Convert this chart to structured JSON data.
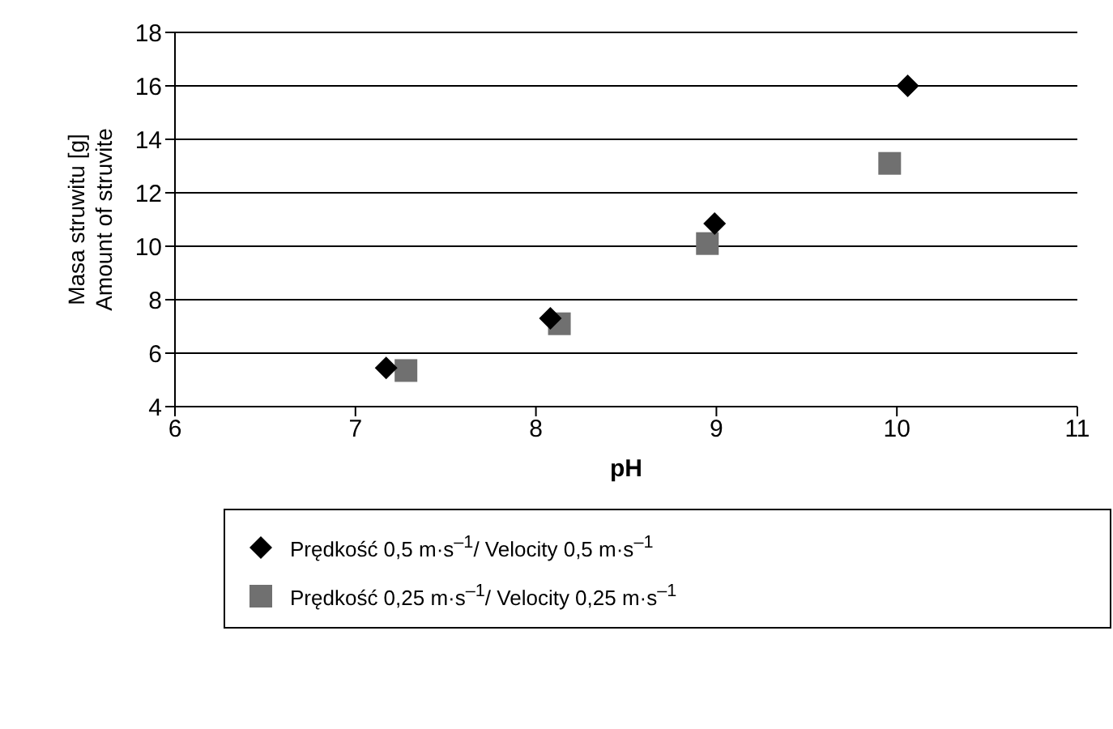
{
  "chart_data": {
    "type": "scatter",
    "xlabel": "pH",
    "ylabel": "Masa struwitu [g]\nAmount of struvite",
    "xlim": [
      6,
      11
    ],
    "xticks": [
      6,
      7,
      8,
      9,
      10,
      11
    ],
    "ylim": [
      4,
      18
    ],
    "yticks": [
      4,
      6,
      8,
      10,
      12,
      14,
      16,
      18
    ],
    "grid": "y",
    "legend": "bottom",
    "series": [
      {
        "name": "Prędkość 0,5 m·s$^{–1}$/ Velocity 0,5 m·s$^{–1}$",
        "color": "#000000",
        "marker": "diamond",
        "x": [
          7.17,
          8.08,
          8.99,
          10.06
        ],
        "values": [
          5.45,
          7.3,
          10.85,
          16.0
        ]
      },
      {
        "name": "Prędkość 0,25 m·s$^{–1}$/ Velocity 0,25 m·s$^{–1}$",
        "color": "#707070",
        "marker": "square",
        "x": [
          7.28,
          8.13,
          8.95,
          9.96
        ],
        "values": [
          5.35,
          7.1,
          10.1,
          13.1
        ]
      }
    ]
  }
}
